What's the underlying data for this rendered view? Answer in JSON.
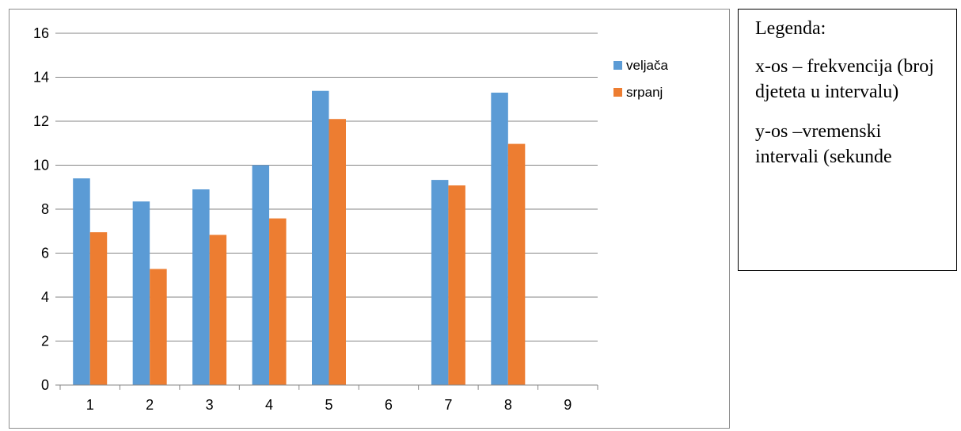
{
  "chart_data": {
    "type": "bar",
    "categories": [
      "1",
      "2",
      "3",
      "4",
      "5",
      "6",
      "7",
      "8",
      "9"
    ],
    "series": [
      {
        "name": "veljača",
        "color": "#5b9bd5",
        "values": [
          9.4,
          8.35,
          8.9,
          10.0,
          13.38,
          null,
          9.33,
          13.3,
          null
        ]
      },
      {
        "name": "srpanj",
        "color": "#ed7d31",
        "values": [
          6.95,
          5.28,
          6.83,
          7.58,
          12.1,
          null,
          9.08,
          10.97,
          null
        ]
      }
    ],
    "title": "",
    "xlabel": "",
    "ylabel": "",
    "ylim": [
      0,
      16
    ],
    "yticks": [
      "0",
      "2",
      "4",
      "6",
      "8",
      "10",
      "12",
      "14",
      "16"
    ],
    "grid": true,
    "legend_position": "right"
  },
  "note": {
    "heading": "Legenda:",
    "x_axis_text": "x-os – frekvencija (broj djeteta u intervalu)",
    "y_axis_text": "y-os –vremenski intervali (sekunde"
  }
}
